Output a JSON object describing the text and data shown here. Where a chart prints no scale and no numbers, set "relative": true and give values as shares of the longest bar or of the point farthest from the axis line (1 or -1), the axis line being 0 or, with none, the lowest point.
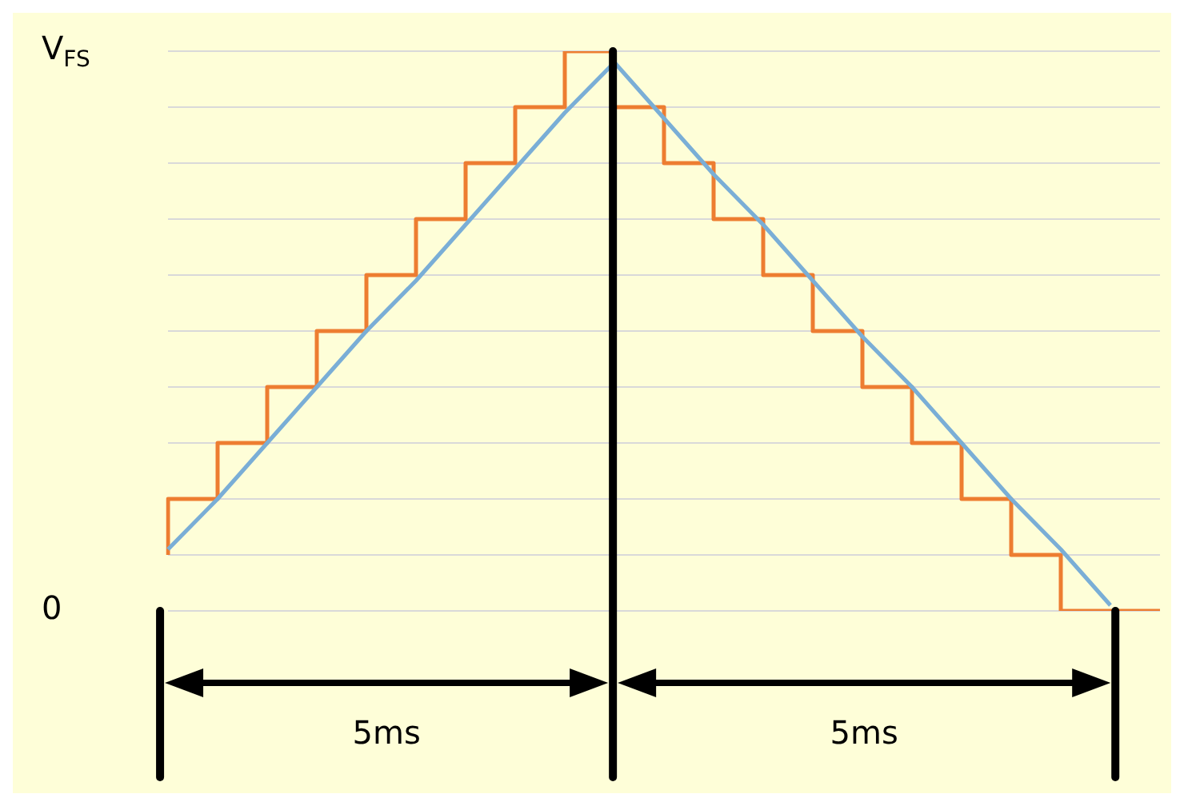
{
  "chart_data": {
    "type": "line",
    "categories": [
      null,
      null,
      null,
      null,
      null,
      null,
      null,
      null,
      null,
      null,
      null,
      null,
      null,
      null,
      null,
      null,
      null,
      null,
      null,
      null,
      null
    ],
    "series": [
      {
        "color": "#7aaed6",
        "values": [
          0.11,
          0.2,
          0.3,
          0.4,
          0.5,
          0.59,
          0.69,
          0.79,
          0.89,
          0.98,
          0.88,
          0.78,
          0.69,
          0.59,
          0.49,
          0.4,
          0.3,
          0.2,
          0.11,
          0.01,
          null
        ]
      },
      {
        "type": "step",
        "color": "#ed7d31",
        "values": [
          0.1,
          0.2,
          0.3,
          0.4,
          0.5,
          0.6,
          0.7,
          0.8,
          0.9,
          1.0,
          0.9,
          0.8,
          0.7,
          0.6,
          0.5,
          0.4,
          0.3,
          0.2,
          0.1,
          0,
          0
        ]
      }
    ],
    "relative": true,
    "tick_labels": false,
    "grid": "y",
    "legend": false,
    "marker": "none",
    "annotations": [
      "V$_{FS}$",
      "0",
      "5ms",
      "5ms"
    ]
  }
}
